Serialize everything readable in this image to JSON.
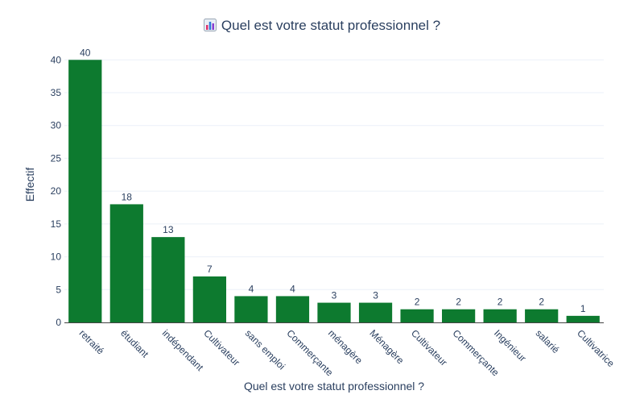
{
  "chart_data": {
    "type": "bar",
    "title": "Quel est votre statut professionnel ?",
    "title_icon": "bar-chart-emoji-icon",
    "xlabel": "Quel est votre statut professionnel ?",
    "ylabel": "Effectif",
    "categories": [
      "retraité",
      "étudiant",
      "indépendant",
      "Cultivateur",
      "sans emploi",
      "Commerçante",
      "ménagère",
      "Ménagère",
      "Cultivateur",
      "Commerçante",
      "Ingénieur",
      "salarié",
      "Cultivatrice"
    ],
    "values": [
      40,
      18,
      13,
      7,
      4,
      4,
      3,
      3,
      2,
      2,
      2,
      2,
      1
    ],
    "data_labels": [
      "40",
      "18",
      "13",
      "7",
      "4",
      "4",
      "3",
      "3",
      "2",
      "2",
      "2",
      "2",
      "1"
    ],
    "ylim": [
      0,
      42
    ],
    "yticks": [
      0,
      5,
      10,
      15,
      20,
      25,
      30,
      35,
      40
    ],
    "ytick_labels": [
      "0",
      "5",
      "10",
      "15",
      "20",
      "25",
      "30",
      "35",
      "40"
    ],
    "grid": true,
    "legend": "none",
    "bar_color": "#0d7a2f"
  }
}
